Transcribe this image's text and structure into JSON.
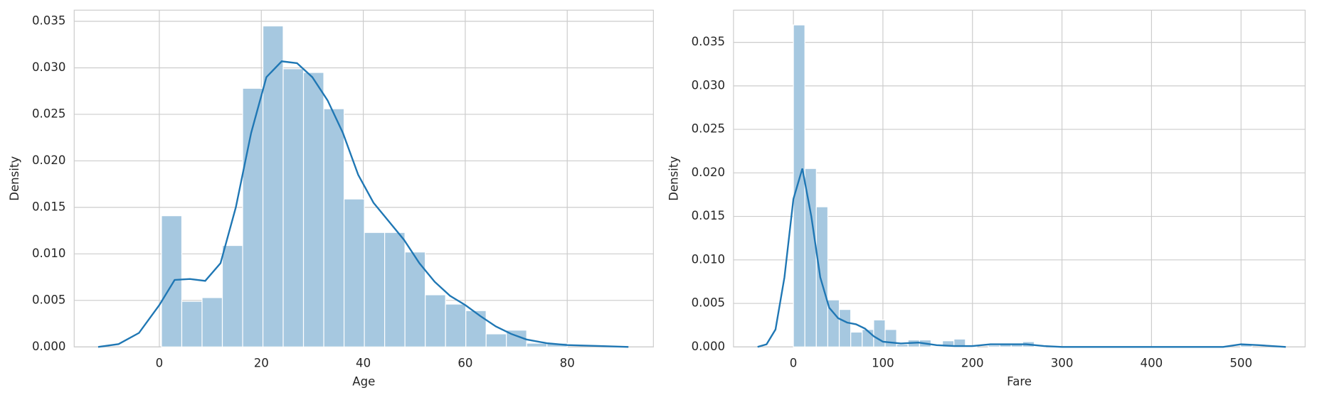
{
  "chart_data": [
    {
      "type": "histogram",
      "x_label": "Age",
      "y_label": "Density",
      "bins": [
        0.42,
        4.4,
        8.38,
        12.36,
        16.34,
        20.32,
        24.29,
        28.27,
        32.25,
        36.23,
        40.21,
        44.19,
        48.17,
        52.15,
        56.13,
        60.11,
        64.09,
        68.06,
        72.04,
        76.02,
        80.0
      ],
      "values": [
        0.0141,
        0.0049,
        0.0053,
        0.0109,
        0.0278,
        0.0345,
        0.0299,
        0.0295,
        0.0256,
        0.0159,
        0.0123,
        0.0123,
        0.0102,
        0.0056,
        0.0046,
        0.0039,
        0.0014,
        0.0018,
        0.0004,
        0.0004
      ],
      "color": "#a6c8e0",
      "kde_x": [
        -12,
        -8,
        -4,
        0,
        3,
        6,
        9,
        12,
        15,
        18,
        21,
        24,
        27,
        30,
        33,
        36,
        39,
        42,
        45,
        48,
        51,
        54,
        57,
        60,
        63,
        66,
        69,
        72,
        76,
        80,
        86,
        92
      ],
      "kde_values": [
        0,
        0.0003,
        0.0015,
        0.0045,
        0.0072,
        0.0073,
        0.0071,
        0.009,
        0.015,
        0.023,
        0.029,
        0.0307,
        0.0305,
        0.029,
        0.0265,
        0.023,
        0.0185,
        0.0155,
        0.0135,
        0.0115,
        0.009,
        0.007,
        0.0055,
        0.0045,
        0.0033,
        0.0022,
        0.0014,
        0.0008,
        0.0004,
        0.0002,
        0.0001,
        0
      ],
      "kde_color": "#1f77b4",
      "xlim": [
        -16.7,
        96.9
      ],
      "ylim": [
        0,
        0.0362
      ],
      "xticks": [
        0,
        20,
        40,
        60,
        80
      ],
      "yticks": [
        {
          "value": 0,
          "label": "0.000"
        },
        {
          "value": 0.005,
          "label": "0.005"
        },
        {
          "value": 0.01,
          "label": "0.010"
        },
        {
          "value": 0.015,
          "label": "0.015"
        },
        {
          "value": 0.02,
          "label": "0.020"
        },
        {
          "value": 0.025,
          "label": "0.025"
        },
        {
          "value": 0.03,
          "label": "0.030"
        },
        {
          "value": 0.035,
          "label": "0.035"
        }
      ],
      "grid": true
    },
    {
      "type": "histogram",
      "x_label": "Fare",
      "y_label": "Density",
      "bins": [
        0,
        12.81,
        25.62,
        38.42,
        51.23,
        64.04,
        76.85,
        89.66,
        102.47,
        115.27,
        128.08,
        140.89,
        153.7,
        166.51,
        179.32,
        192.12,
        204.93,
        217.74,
        230.55,
        243.36,
        256.16,
        268.97,
        281.78,
        294.59,
        307.4,
        320.21,
        333.01,
        345.82,
        358.63,
        371.44,
        384.25,
        397.05,
        409.86,
        422.67,
        435.48,
        448.29,
        461.1,
        473.9,
        486.71,
        499.52,
        512.33
      ],
      "values": [
        0.037,
        0.0205,
        0.0161,
        0.0054,
        0.0043,
        0.0017,
        0.002,
        0.0031,
        0.002,
        0.0003,
        0.0008,
        0.0008,
        0.0001,
        0.0007,
        0.0009,
        0.0001,
        0,
        0.0002,
        0.0003,
        0.0003,
        0.0006,
        0.0001,
        0,
        0,
        0,
        0,
        0,
        0,
        0,
        0,
        0,
        0,
        0,
        0,
        0,
        0,
        0,
        0,
        0,
        0.0003
      ],
      "color": "#a6c8e0",
      "kde_x": [
        -40,
        -30,
        -20,
        -10,
        0,
        10,
        20,
        30,
        40,
        50,
        60,
        70,
        80,
        90,
        100,
        120,
        140,
        160,
        180,
        200,
        220,
        240,
        260,
        280,
        300,
        400,
        480,
        500,
        520,
        550
      ],
      "kde_values": [
        0,
        0.0003,
        0.002,
        0.008,
        0.017,
        0.0205,
        0.015,
        0.008,
        0.0045,
        0.0033,
        0.0028,
        0.0026,
        0.0021,
        0.0012,
        0.0006,
        0.0004,
        0.0005,
        0.0002,
        0.0001,
        0.0001,
        0.0003,
        0.0003,
        0.0003,
        0.0001,
        0,
        0,
        0,
        0.0003,
        0.0002,
        0
      ],
      "kde_color": "#1f77b4",
      "xlim": [
        -66.9,
        571.6
      ],
      "ylim": [
        0,
        0.0387
      ],
      "xticks": [
        0,
        100,
        200,
        300,
        400,
        500
      ],
      "yticks": [
        {
          "value": 0,
          "label": "0.000"
        },
        {
          "value": 0.005,
          "label": "0.005"
        },
        {
          "value": 0.01,
          "label": "0.010"
        },
        {
          "value": 0.015,
          "label": "0.015"
        },
        {
          "value": 0.02,
          "label": "0.020"
        },
        {
          "value": 0.025,
          "label": "0.025"
        },
        {
          "value": 0.03,
          "label": "0.030"
        },
        {
          "value": 0.035,
          "label": "0.035"
        }
      ],
      "grid": true
    }
  ]
}
